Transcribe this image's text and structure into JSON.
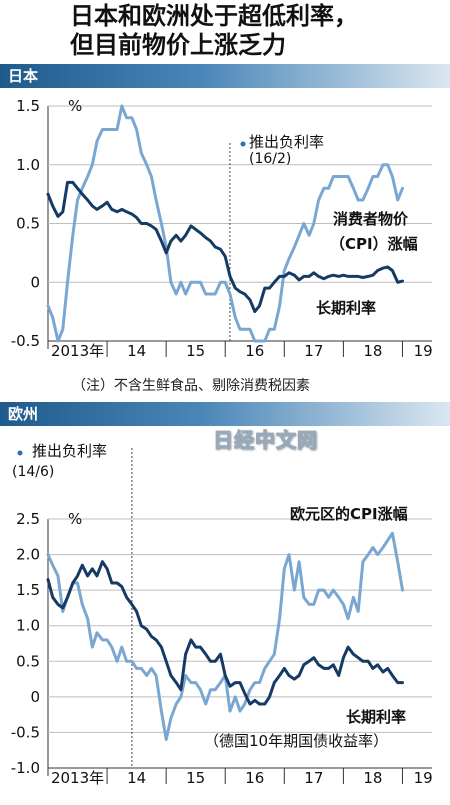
{
  "header": {
    "title_line1": "日本和欧洲处于超低利率，",
    "title_line2": "但目前物价上涨乏力",
    "watermark": "日经中文网"
  },
  "colors": {
    "band": "#1f5a8c",
    "cpi": "#7aa7d2",
    "rate": "#163a66"
  },
  "chart_data": [
    {
      "type": "line",
      "section_label": "日本",
      "unit": "%",
      "ylim": [
        -0.5,
        1.5
      ],
      "yticks": [
        "1.5",
        "1.0",
        "0.5",
        "0",
        "-0.5"
      ],
      "ytick_values": [
        1.5,
        1.0,
        0.5,
        0,
        -0.5
      ],
      "xlim": [
        2013.0,
        2019.5
      ],
      "x_tick_labels": [
        "2013年",
        "14",
        "15",
        "16",
        "17",
        "18",
        "19"
      ],
      "x_tick_label_x": [
        2013.5,
        2014.5,
        2015.5,
        2016.5,
        2017.5,
        2018.5,
        2019.35
      ],
      "year_boundaries": [
        2014,
        2015,
        2016,
        2017,
        2018,
        2019
      ],
      "event_x": 2016.08,
      "event_label": "推出负利率",
      "event_date": "(16/2)",
      "note": "（注）不含生鲜食品、剔除消费税因素",
      "series": [
        {
          "name": "消费者物价（CPI）涨幅",
          "name_line1": "消费者物价",
          "name_line2": "（CPI）涨幅",
          "x": [
            2013.0,
            2013.08,
            2013.17,
            2013.25,
            2013.33,
            2013.42,
            2013.5,
            2013.58,
            2013.67,
            2013.75,
            2013.83,
            2013.92,
            2014.0,
            2014.08,
            2014.17,
            2014.25,
            2014.33,
            2014.42,
            2014.5,
            2014.58,
            2014.67,
            2014.75,
            2014.83,
            2014.92,
            2015.0,
            2015.08,
            2015.17,
            2015.25,
            2015.33,
            2015.42,
            2015.5,
            2015.58,
            2015.67,
            2015.75,
            2015.83,
            2015.92,
            2016.0,
            2016.08,
            2016.17,
            2016.25,
            2016.33,
            2016.42,
            2016.5,
            2016.58,
            2016.67,
            2016.75,
            2016.83,
            2016.92,
            2017.0,
            2017.08,
            2017.17,
            2017.25,
            2017.33,
            2017.42,
            2017.5,
            2017.58,
            2017.67,
            2017.75,
            2017.83,
            2017.92,
            2018.0,
            2018.08,
            2018.17,
            2018.25,
            2018.33,
            2018.42,
            2018.5,
            2018.58,
            2018.67,
            2018.75,
            2018.83,
            2018.92,
            2019.0
          ],
          "values": [
            -0.2,
            -0.3,
            -0.5,
            -0.4,
            0.0,
            0.4,
            0.7,
            0.8,
            0.9,
            1.0,
            1.2,
            1.3,
            1.3,
            1.3,
            1.3,
            1.5,
            1.4,
            1.4,
            1.3,
            1.1,
            1.0,
            0.9,
            0.7,
            0.5,
            0.3,
            0.0,
            -0.1,
            0.0,
            -0.1,
            0.0,
            0.0,
            0.0,
            -0.1,
            -0.1,
            -0.1,
            0.0,
            0.0,
            -0.1,
            -0.3,
            -0.4,
            -0.4,
            -0.4,
            -0.5,
            -0.5,
            -0.5,
            -0.4,
            -0.4,
            -0.2,
            0.1,
            0.2,
            0.3,
            0.4,
            0.5,
            0.4,
            0.5,
            0.7,
            0.8,
            0.8,
            0.9,
            0.9,
            0.9,
            0.9,
            0.8,
            0.7,
            0.7,
            0.8,
            0.9,
            0.9,
            1.0,
            1.0,
            0.9,
            0.7,
            0.8
          ]
        },
        {
          "name": "长期利率",
          "x": [
            2013.0,
            2013.08,
            2013.17,
            2013.25,
            2013.33,
            2013.42,
            2013.5,
            2013.58,
            2013.67,
            2013.75,
            2013.83,
            2013.92,
            2014.0,
            2014.08,
            2014.17,
            2014.25,
            2014.33,
            2014.42,
            2014.5,
            2014.58,
            2014.67,
            2014.75,
            2014.83,
            2014.92,
            2015.0,
            2015.08,
            2015.17,
            2015.25,
            2015.33,
            2015.42,
            2015.5,
            2015.58,
            2015.67,
            2015.75,
            2015.83,
            2015.92,
            2016.0,
            2016.08,
            2016.17,
            2016.25,
            2016.33,
            2016.42,
            2016.5,
            2016.58,
            2016.67,
            2016.75,
            2016.83,
            2016.92,
            2017.0,
            2017.08,
            2017.17,
            2017.25,
            2017.33,
            2017.42,
            2017.5,
            2017.58,
            2017.67,
            2017.75,
            2017.83,
            2017.92,
            2018.0,
            2018.08,
            2018.17,
            2018.25,
            2018.33,
            2018.42,
            2018.5,
            2018.58,
            2018.67,
            2018.75,
            2018.83,
            2018.92,
            2019.0
          ],
          "values": [
            0.75,
            0.65,
            0.56,
            0.6,
            0.85,
            0.85,
            0.8,
            0.75,
            0.7,
            0.65,
            0.62,
            0.65,
            0.68,
            0.62,
            0.6,
            0.62,
            0.6,
            0.58,
            0.55,
            0.5,
            0.5,
            0.48,
            0.45,
            0.35,
            0.25,
            0.35,
            0.4,
            0.35,
            0.4,
            0.48,
            0.45,
            0.42,
            0.38,
            0.35,
            0.3,
            0.28,
            0.22,
            0.05,
            -0.05,
            -0.08,
            -0.1,
            -0.15,
            -0.25,
            -0.2,
            -0.05,
            -0.05,
            0.0,
            0.05,
            0.05,
            0.08,
            0.06,
            0.02,
            0.05,
            0.05,
            0.08,
            0.05,
            0.03,
            0.05,
            0.06,
            0.05,
            0.06,
            0.05,
            0.05,
            0.05,
            0.04,
            0.05,
            0.06,
            0.1,
            0.12,
            0.13,
            0.1,
            0.0,
            0.01
          ]
        }
      ]
    },
    {
      "type": "line",
      "section_label": "欧州",
      "unit": "%",
      "ylim": [
        -1.0,
        2.5
      ],
      "yticks": [
        "2.5",
        "2.0",
        "1.5",
        "1.0",
        "0.5",
        "0",
        "-0.5",
        "-1.0"
      ],
      "ytick_values": [
        2.5,
        2.0,
        1.5,
        1.0,
        0.5,
        0,
        -0.5,
        -1.0
      ],
      "xlim": [
        2013.0,
        2019.5
      ],
      "x_tick_labels": [
        "2013年",
        "14",
        "15",
        "16",
        "17",
        "18",
        "19"
      ],
      "x_tick_label_x": [
        2013.5,
        2014.5,
        2015.5,
        2016.5,
        2017.5,
        2018.5,
        2019.35
      ],
      "year_boundaries": [
        2014,
        2015,
        2016,
        2017,
        2018,
        2019
      ],
      "event_x": 2014.42,
      "event_label": "推出负利率",
      "event_date": "(14/6)",
      "rate_sublabel": "（德国10年期国债收益率）",
      "series": [
        {
          "name": "欧元区的CPI涨幅",
          "x": [
            2013.0,
            2013.08,
            2013.17,
            2013.25,
            2013.33,
            2013.42,
            2013.5,
            2013.58,
            2013.67,
            2013.75,
            2013.83,
            2013.92,
            2014.0,
            2014.08,
            2014.17,
            2014.25,
            2014.33,
            2014.42,
            2014.5,
            2014.58,
            2014.67,
            2014.75,
            2014.83,
            2014.92,
            2015.0,
            2015.08,
            2015.17,
            2015.25,
            2015.33,
            2015.42,
            2015.5,
            2015.58,
            2015.67,
            2015.75,
            2015.83,
            2015.92,
            2016.0,
            2016.08,
            2016.17,
            2016.25,
            2016.33,
            2016.42,
            2016.5,
            2016.58,
            2016.67,
            2016.75,
            2016.83,
            2016.92,
            2017.0,
            2017.08,
            2017.17,
            2017.25,
            2017.33,
            2017.42,
            2017.5,
            2017.58,
            2017.67,
            2017.75,
            2017.83,
            2017.92,
            2018.0,
            2018.08,
            2018.17,
            2018.25,
            2018.33,
            2018.42,
            2018.5,
            2018.58,
            2018.67,
            2018.75,
            2018.83,
            2018.92,
            2019.0
          ],
          "values": [
            2.0,
            1.85,
            1.7,
            1.2,
            1.4,
            1.6,
            1.6,
            1.3,
            1.1,
            0.7,
            0.9,
            0.8,
            0.8,
            0.7,
            0.5,
            0.7,
            0.5,
            0.5,
            0.4,
            0.4,
            0.3,
            0.4,
            0.3,
            -0.2,
            -0.6,
            -0.3,
            -0.1,
            0.0,
            0.3,
            0.2,
            0.2,
            0.1,
            -0.1,
            0.1,
            0.1,
            0.2,
            0.3,
            -0.2,
            0.0,
            -0.2,
            -0.1,
            0.1,
            0.2,
            0.2,
            0.4,
            0.5,
            0.6,
            1.1,
            1.8,
            2.0,
            1.5,
            1.9,
            1.4,
            1.3,
            1.3,
            1.5,
            1.5,
            1.4,
            1.5,
            1.4,
            1.3,
            1.1,
            1.4,
            1.2,
            1.9,
            2.0,
            2.1,
            2.0,
            2.1,
            2.2,
            2.3,
            1.9,
            1.5
          ]
        },
        {
          "name": "长期利率",
          "x": [
            2013.0,
            2013.08,
            2013.17,
            2013.25,
            2013.33,
            2013.42,
            2013.5,
            2013.58,
            2013.67,
            2013.75,
            2013.83,
            2013.92,
            2014.0,
            2014.08,
            2014.17,
            2014.25,
            2014.33,
            2014.42,
            2014.5,
            2014.58,
            2014.67,
            2014.75,
            2014.83,
            2014.92,
            2015.0,
            2015.08,
            2015.17,
            2015.25,
            2015.33,
            2015.42,
            2015.5,
            2015.58,
            2015.67,
            2015.75,
            2015.83,
            2015.92,
            2016.0,
            2016.08,
            2016.17,
            2016.25,
            2016.33,
            2016.42,
            2016.5,
            2016.58,
            2016.67,
            2016.75,
            2016.83,
            2016.92,
            2017.0,
            2017.08,
            2017.17,
            2017.25,
            2017.33,
            2017.42,
            2017.5,
            2017.58,
            2017.67,
            2017.75,
            2017.83,
            2017.92,
            2018.0,
            2018.08,
            2018.17,
            2018.25,
            2018.33,
            2018.42,
            2018.5,
            2018.58,
            2018.67,
            2018.75,
            2018.83,
            2018.92,
            2019.0
          ],
          "values": [
            1.65,
            1.4,
            1.3,
            1.25,
            1.4,
            1.6,
            1.7,
            1.85,
            1.7,
            1.8,
            1.7,
            1.9,
            1.8,
            1.6,
            1.6,
            1.55,
            1.4,
            1.3,
            1.2,
            1.0,
            0.95,
            0.85,
            0.8,
            0.7,
            0.5,
            0.3,
            0.2,
            0.1,
            0.6,
            0.8,
            0.7,
            0.7,
            0.6,
            0.5,
            0.5,
            0.6,
            0.3,
            0.15,
            0.2,
            0.2,
            0.05,
            -0.1,
            -0.05,
            -0.1,
            -0.1,
            0.0,
            0.2,
            0.3,
            0.4,
            0.3,
            0.25,
            0.3,
            0.45,
            0.5,
            0.55,
            0.45,
            0.4,
            0.4,
            0.45,
            0.3,
            0.55,
            0.7,
            0.6,
            0.55,
            0.5,
            0.5,
            0.4,
            0.45,
            0.35,
            0.4,
            0.3,
            0.2,
            0.2
          ]
        }
      ]
    }
  ]
}
